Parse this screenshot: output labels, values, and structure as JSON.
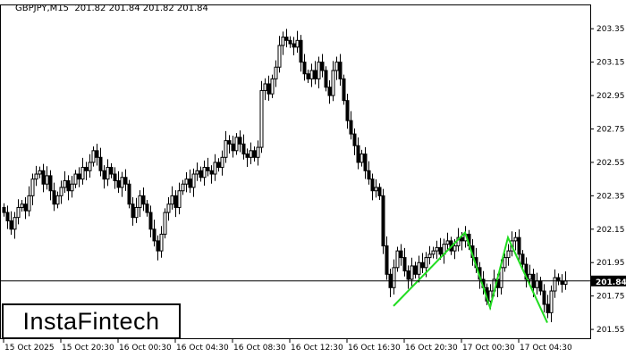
{
  "header": {
    "symbol": "GBPJPY,M15",
    "ohlc": "201.82 201.84 201.82 201.84"
  },
  "logo": {
    "text": "InstaFintech"
  },
  "chart_data": {
    "type": "candlestick",
    "timeframe": "M15",
    "ylim": [
      201.497,
      203.49
    ],
    "y_ticks": [
      203.35,
      203.15,
      202.95,
      202.75,
      202.55,
      202.35,
      202.15,
      201.95,
      201.75,
      201.55
    ],
    "x_tick_labels": [
      "15 Oct 2025",
      "15 Oct 20:30",
      "16 Oct 00:30",
      "16 Oct 04:30",
      "16 Oct 08:30",
      "16 Oct 12:30",
      "16 Oct 16:30",
      "16 Oct 20:30",
      "17 Oct 00:30",
      "17 Oct 04:30"
    ],
    "candles_per_tick": 16,
    "current_price": 201.84,
    "current_price_label": "201.84",
    "close": [
      202.25,
      202.2,
      202.15,
      202.22,
      202.28,
      202.3,
      202.26,
      202.35,
      202.45,
      202.48,
      202.5,
      202.42,
      202.47,
      202.38,
      202.3,
      202.35,
      202.4,
      202.44,
      202.38,
      202.42,
      202.48,
      202.45,
      202.52,
      202.5,
      202.55,
      202.62,
      202.58,
      202.5,
      202.45,
      202.52,
      202.48,
      202.44,
      202.4,
      202.46,
      202.42,
      202.3,
      202.22,
      202.28,
      202.35,
      202.3,
      202.25,
      202.15,
      202.08,
      202.02,
      202.12,
      202.25,
      202.3,
      202.35,
      202.28,
      202.38,
      202.42,
      202.45,
      202.4,
      202.48,
      202.5,
      202.46,
      202.52,
      202.5,
      202.48,
      202.55,
      202.52,
      202.58,
      202.68,
      202.66,
      202.62,
      202.7,
      202.66,
      202.6,
      202.58,
      202.62,
      202.58,
      202.64,
      202.98,
      203.02,
      202.96,
      203.05,
      203.12,
      203.25,
      203.3,
      203.28,
      203.26,
      203.24,
      203.28,
      203.15,
      203.08,
      203.05,
      203.1,
      203.05,
      203.15,
      203.1,
      203.0,
      202.95,
      203.1,
      203.15,
      203.05,
      202.92,
      202.8,
      202.72,
      202.65,
      202.55,
      202.6,
      202.5,
      202.45,
      202.38,
      202.4,
      202.35,
      202.05,
      201.88,
      201.8,
      201.92,
      202.02,
      201.98,
      201.9,
      201.85,
      201.93,
      201.88,
      201.95,
      201.92,
      201.98,
      202.0,
      202.02,
      202.04,
      202.0,
      202.06,
      202.08,
      202.02,
      202.05,
      202.1,
      202.08,
      202.12,
      202.05,
      201.98,
      201.92,
      201.85,
      201.8,
      201.72,
      201.78,
      201.85,
      201.8,
      201.92,
      201.98,
      202.02,
      202.08,
      202.1,
      202.0,
      201.94,
      201.85,
      201.88,
      201.8,
      201.84,
      201.78,
      201.7,
      201.65,
      201.78,
      201.86,
      201.84,
      201.82,
      201.84
    ],
    "pattern": {
      "color": "#22dd22",
      "points": [
        [
          109,
          201.69
        ],
        [
          129,
          202.13
        ],
        [
          136,
          201.68
        ],
        [
          141,
          202.1
        ],
        [
          152,
          201.59
        ]
      ]
    },
    "colors": {
      "candle": "#000000",
      "pattern": "#22dd22",
      "price_label_bg": "#000000"
    }
  }
}
